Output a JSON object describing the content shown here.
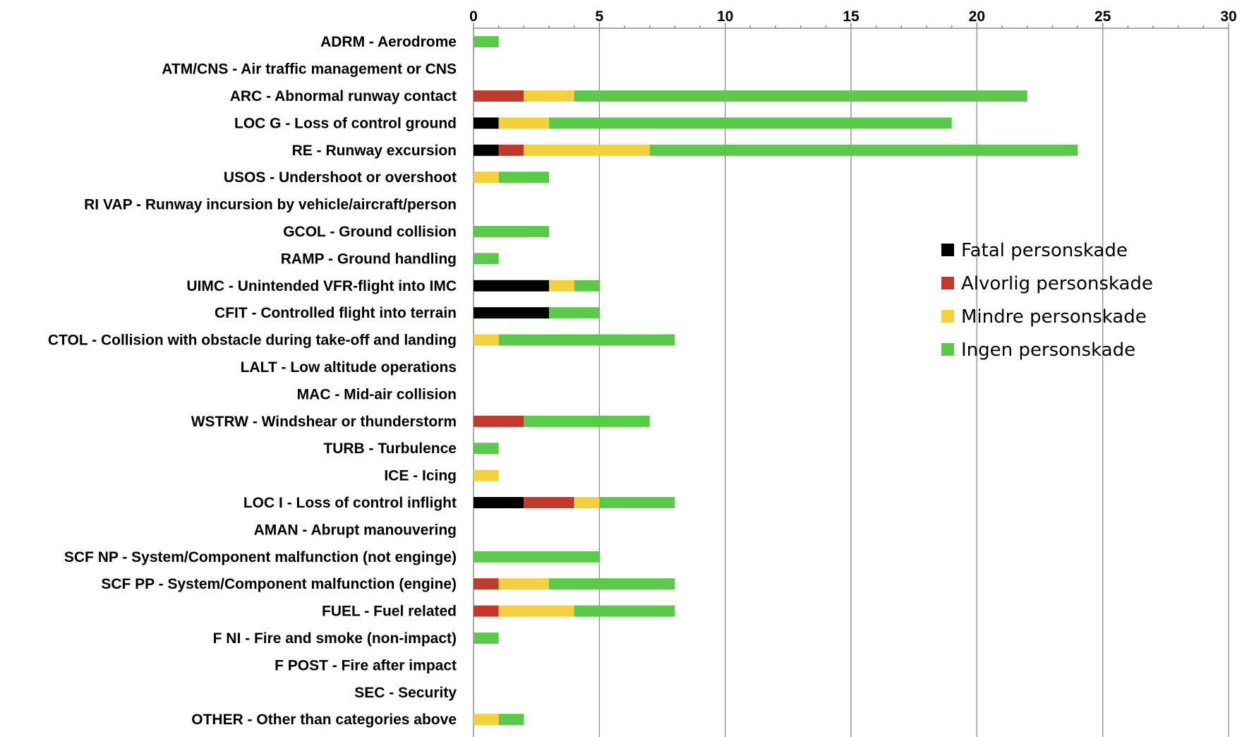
{
  "chart_data": {
    "type": "bar",
    "orientation": "horizontal",
    "stacked": true,
    "xlim": [
      0,
      30
    ],
    "x_ticks": [
      "0",
      "5",
      "10",
      "15",
      "20",
      "25",
      "30"
    ],
    "x_axis_position": "top",
    "grid": true,
    "legend_position": "right",
    "categories": [
      "ADRM - Aerodrome",
      "ATM/CNS - Air traffic management or CNS",
      "ARC - Abnormal runway contact",
      "LOC G - Loss of control ground",
      "RE - Runway excursion",
      "USOS - Undershoot or overshoot",
      "RI VAP - Runway incursion by vehicle/aircraft/person",
      "GCOL - Ground collision",
      "RAMP - Ground handling",
      "UIMC - Unintended VFR-flight into IMC",
      "CFIT - Controlled flight into terrain",
      "CTOL - Collision with obstacle during take-off and landing",
      "LALT - Low altitude operations",
      "MAC - Mid-air collision",
      "WSTRW - Windshear or thunderstorm",
      "TURB - Turbulence",
      "ICE - Icing",
      "LOC I - Loss of control inflight",
      "AMAN - Abrupt manouvering",
      "SCF NP - System/Component malfunction (not enginge)",
      "SCF PP - System/Component malfunction (engine)",
      "FUEL - Fuel related",
      "F NI - Fire and smoke (non-impact)",
      "F POST - Fire after impact",
      "SEC - Security",
      "OTHER - Other than categories above"
    ],
    "series": [
      {
        "name": "Fatal personskade",
        "color": "#000000",
        "values": [
          0,
          0,
          0,
          1,
          1,
          0,
          0,
          0,
          0,
          3,
          3,
          0,
          0,
          0,
          0,
          0,
          0,
          2,
          0,
          0,
          0,
          0,
          0,
          0,
          0,
          0
        ]
      },
      {
        "name": "Alvorlig personskade",
        "color": "#c0392b",
        "values": [
          0,
          0,
          2,
          0,
          1,
          0,
          0,
          0,
          0,
          0,
          0,
          0,
          0,
          0,
          2,
          0,
          0,
          2,
          0,
          0,
          1,
          1,
          0,
          0,
          0,
          0
        ]
      },
      {
        "name": "Mindre personskade",
        "color": "#f4d03f",
        "values": [
          0,
          0,
          2,
          2,
          5,
          1,
          0,
          0,
          0,
          1,
          0,
          1,
          0,
          0,
          0,
          0,
          1,
          1,
          0,
          0,
          2,
          3,
          0,
          0,
          0,
          1
        ]
      },
      {
        "name": "Ingen personskade",
        "color": "#5ac94a",
        "values": [
          1,
          0,
          18,
          16,
          17,
          2,
          0,
          3,
          1,
          1,
          2,
          7,
          0,
          0,
          5,
          1,
          0,
          3,
          0,
          5,
          5,
          4,
          1,
          0,
          0,
          1
        ]
      }
    ]
  }
}
